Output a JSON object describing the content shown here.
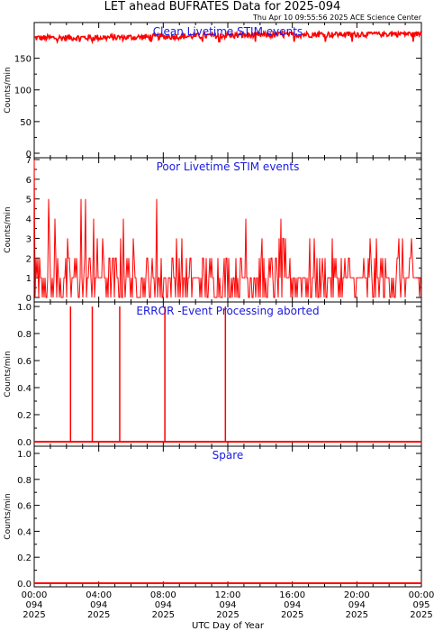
{
  "title": "LET ahead BUFRATES Data for 2025-094",
  "timestamp": "Thu Apr 10 09:55:56 2025 ACE Science Center",
  "xlabel": "UTC Day of Year",
  "colors": {
    "series": "#ff0000",
    "panel_title": "#1a1adf",
    "axes": "#000000"
  },
  "chart_data": [
    {
      "type": "line",
      "title": "Clean Livetime STIM events",
      "ylabel": "Counts/min",
      "ylim": [
        0,
        195
      ],
      "yticks": [
        "0",
        "50",
        "100",
        "150"
      ],
      "ytick_values": [
        0,
        50,
        100,
        150
      ],
      "xlim": [
        0,
        24
      ],
      "series": [
        {
          "kind": "noisy",
          "mean": 184,
          "amplitude": 5,
          "min": 176,
          "max": 191,
          "trend": [
            [
              0,
              182
            ],
            [
              6,
              183
            ],
            [
              12,
              186
            ],
            [
              18,
              188
            ],
            [
              24,
              189
            ]
          ]
        }
      ]
    },
    {
      "type": "line",
      "title": "Poor Livetime STIM events",
      "ylabel": "Counts/min",
      "ylim": [
        0,
        7
      ],
      "yticks": [
        "0",
        "1",
        "2",
        "3",
        "4",
        "5",
        "6",
        "7"
      ],
      "ytick_values": [
        0,
        1,
        2,
        3,
        4,
        5,
        6,
        7
      ],
      "xlim": [
        0,
        24
      ],
      "series": [
        {
          "kind": "discrete-spikes",
          "start_value": 7,
          "baseline_max": 2,
          "peak_values": [
            [
              0.9,
              5
            ],
            [
              1.3,
              4
            ],
            [
              2.9,
              5
            ],
            [
              3.2,
              5
            ],
            [
              3.7,
              4
            ],
            [
              5.5,
              4
            ],
            [
              7.6,
              5
            ],
            [
              8.8,
              3
            ],
            [
              13.1,
              4
            ],
            [
              15.3,
              4
            ],
            [
              20.8,
              3
            ],
            [
              22.6,
              3
            ]
          ]
        }
      ]
    },
    {
      "type": "line",
      "title": "ERROR -Event Processing aborted",
      "ylabel": "Counts/min",
      "ylim": [
        0,
        1.0
      ],
      "yticks": [
        "0.0",
        "0.2",
        "0.4",
        "0.6",
        "0.8",
        "1.0"
      ],
      "ytick_values": [
        0,
        0.2,
        0.4,
        0.6,
        0.8,
        1.0
      ],
      "xlim": [
        0,
        24
      ],
      "series": [
        {
          "kind": "spikes",
          "baseline": 0,
          "spikes": [
            [
              2.25,
              1
            ],
            [
              3.6,
              1
            ],
            [
              5.3,
              1
            ],
            [
              8.1,
              1
            ],
            [
              11.85,
              1
            ]
          ]
        }
      ]
    },
    {
      "type": "line",
      "title": "Spare",
      "ylabel": "Counts/min",
      "ylim": [
        0,
        1.0
      ],
      "yticks": [
        "0.0",
        "0.2",
        "0.4",
        "0.6",
        "0.8",
        "1.0"
      ],
      "ytick_values": [
        0,
        0.2,
        0.4,
        0.6,
        0.8,
        1.0
      ],
      "xlim": [
        0,
        24
      ],
      "series": [
        {
          "kind": "flat",
          "value": 0
        }
      ]
    }
  ],
  "xticks": [
    {
      "time": "00:00",
      "doy": "094",
      "year": "2025",
      "hour": 0
    },
    {
      "time": "04:00",
      "doy": "094",
      "year": "2025",
      "hour": 4
    },
    {
      "time": "08:00",
      "doy": "094",
      "year": "2025",
      "hour": 8
    },
    {
      "time": "12:00",
      "doy": "094",
      "year": "2025",
      "hour": 12
    },
    {
      "time": "16:00",
      "doy": "094",
      "year": "2025",
      "hour": 16
    },
    {
      "time": "20:00",
      "doy": "094",
      "year": "2025",
      "hour": 20
    },
    {
      "time": "00:00",
      "doy": "095",
      "year": "2025",
      "hour": 24
    }
  ]
}
